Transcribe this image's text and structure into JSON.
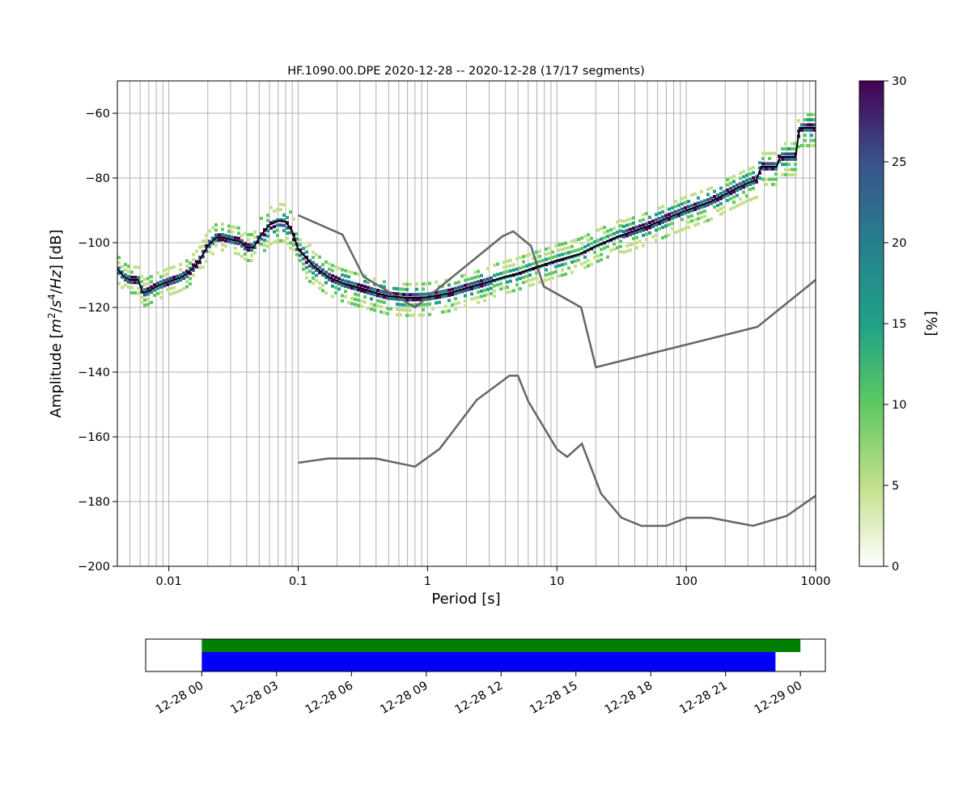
{
  "chart_data": [
    {
      "type": "heatmap",
      "title": "HF.1090.00.DPE   2020-12-28 -- 2020-12-28  (17/17 segments)",
      "xlabel": "Period [s]",
      "ylabel_main": "Amplitude [",
      "ylabel_math": [
        "m",
        "2",
        "/",
        "s",
        "4",
        "/",
        "Hz"
      ],
      "ylabel_tail": "] [dB]",
      "x_scale": "log",
      "xlim": [
        0.004,
        1000
      ],
      "ylim": [
        -200,
        -50
      ],
      "x_ticks": [
        {
          "value": 0.01,
          "label": "0.01"
        },
        {
          "value": 0.1,
          "label": "0.1"
        },
        {
          "value": 1,
          "label": "1"
        },
        {
          "value": 10,
          "label": "10"
        },
        {
          "value": 100,
          "label": "100"
        },
        {
          "value": 1000,
          "label": "1000"
        }
      ],
      "y_ticks": [
        {
          "value": -60,
          "label": "−60"
        },
        {
          "value": -80,
          "label": "−80"
        },
        {
          "value": -100,
          "label": "−100"
        },
        {
          "value": -120,
          "label": "−120"
        },
        {
          "value": -140,
          "label": "−140"
        },
        {
          "value": -160,
          "label": "−160"
        },
        {
          "value": -180,
          "label": "−180"
        },
        {
          "value": -200,
          "label": "−200"
        }
      ],
      "grid": true,
      "colorbar": {
        "label": "[%]",
        "range": [
          0,
          30
        ],
        "ticks": [
          {
            "value": 0,
            "label": "0"
          },
          {
            "value": 5,
            "label": "5"
          },
          {
            "value": 10,
            "label": "10"
          },
          {
            "value": 15,
            "label": "15"
          },
          {
            "value": 20,
            "label": "20"
          },
          {
            "value": 25,
            "label": "25"
          },
          {
            "value": 30,
            "label": "30"
          }
        ],
        "colors": [
          "#ffffff",
          "#c2df8a",
          "#5ec962",
          "#1fa187",
          "#277f8e",
          "#3a538b",
          "#440154"
        ]
      },
      "mean_curve": {
        "color": "#000000",
        "points": [
          [
            0.004,
            -108
          ],
          [
            0.0045,
            -110.5
          ],
          [
            0.005,
            -111.5
          ],
          [
            0.0058,
            -111.5
          ],
          [
            0.0063,
            -115.5
          ],
          [
            0.007,
            -115
          ],
          [
            0.008,
            -113.5
          ],
          [
            0.01,
            -112
          ],
          [
            0.012,
            -111
          ],
          [
            0.014,
            -109.5
          ],
          [
            0.017,
            -106
          ],
          [
            0.02,
            -101
          ],
          [
            0.023,
            -98.5
          ],
          [
            0.026,
            -98.3
          ],
          [
            0.03,
            -99
          ],
          [
            0.035,
            -99.5
          ],
          [
            0.04,
            -101.5
          ],
          [
            0.045,
            -101.5
          ],
          [
            0.05,
            -98.5
          ],
          [
            0.06,
            -94.5
          ],
          [
            0.07,
            -93.3
          ],
          [
            0.08,
            -93.5
          ],
          [
            0.09,
            -96.5
          ],
          [
            0.1,
            -102
          ],
          [
            0.13,
            -107
          ],
          [
            0.17,
            -110.5
          ],
          [
            0.22,
            -112.5
          ],
          [
            0.3,
            -114
          ],
          [
            0.4,
            -115.5
          ],
          [
            0.5,
            -116.5
          ],
          [
            0.7,
            -117
          ],
          [
            1,
            -116.8
          ],
          [
            1.5,
            -115.5
          ],
          [
            2,
            -114
          ],
          [
            3,
            -112
          ],
          [
            4,
            -110.5
          ],
          [
            5,
            -109.5
          ],
          [
            7,
            -107.5
          ],
          [
            10,
            -105.5
          ],
          [
            15,
            -103.5
          ],
          [
            20,
            -101
          ],
          [
            30,
            -98
          ],
          [
            50,
            -95
          ],
          [
            70,
            -92.5
          ],
          [
            100,
            -90
          ],
          [
            150,
            -87.5
          ],
          [
            200,
            -85
          ],
          [
            250,
            -83
          ],
          [
            300,
            -81.5
          ],
          [
            350,
            -80.5
          ],
          [
            380,
            -76.5
          ],
          [
            500,
            -76.5
          ],
          [
            530,
            -73.5
          ],
          [
            700,
            -73.5
          ],
          [
            750,
            -64.5
          ],
          [
            1000,
            -64.5
          ]
        ]
      },
      "model_curves": [
        {
          "color": "#666666",
          "points": [
            [
              0.1,
              -91.5
            ],
            [
              0.22,
              -97.5
            ],
            [
              0.32,
              -110.5
            ],
            [
              0.8,
              -120
            ],
            [
              3.8,
              -98
            ],
            [
              4.6,
              -96.5
            ],
            [
              6.3,
              -101
            ],
            [
              7.9,
              -113.5
            ],
            [
              15.4,
              -120
            ],
            [
              20,
              -138.5
            ],
            [
              354.8,
              -126
            ],
            [
              1000,
              -111.5
            ]
          ]
        },
        {
          "color": "#666666",
          "points": [
            [
              0.1,
              -168
            ],
            [
              0.17,
              -166.7
            ],
            [
              0.4,
              -166.7
            ],
            [
              0.8,
              -169.2
            ],
            [
              1.24,
              -163.7
            ],
            [
              2.4,
              -148.6
            ],
            [
              4.3,
              -141.1
            ],
            [
              5,
              -141.1
            ],
            [
              6,
              -149
            ],
            [
              10,
              -163.8
            ],
            [
              12,
              -166.2
            ],
            [
              15.6,
              -162.1
            ],
            [
              21.9,
              -177.5
            ],
            [
              31.6,
              -185
            ],
            [
              45,
              -187.5
            ],
            [
              70,
              -187.5
            ],
            [
              101,
              -185
            ],
            [
              154,
              -185
            ],
            [
              328,
              -187.5
            ],
            [
              600,
              -184.4
            ],
            [
              1000,
              -178.2
            ]
          ]
        }
      ]
    },
    {
      "type": "timeline",
      "xlim": [
        "2020-12-27 21:45",
        "2020-12-29 01:00"
      ],
      "x_ticks": [
        {
          "value": "2020-12-28 00:00",
          "label": "12-28 00"
        },
        {
          "value": "2020-12-28 03:00",
          "label": "12-28 03"
        },
        {
          "value": "2020-12-28 06:00",
          "label": "12-28 06"
        },
        {
          "value": "2020-12-28 09:00",
          "label": "12-28 09"
        },
        {
          "value": "2020-12-28 12:00",
          "label": "12-28 12"
        },
        {
          "value": "2020-12-28 15:00",
          "label": "12-28 15"
        },
        {
          "value": "2020-12-28 18:00",
          "label": "12-28 18"
        },
        {
          "value": "2020-12-28 21:00",
          "label": "12-28 21"
        },
        {
          "value": "2020-12-29 00:00",
          "label": "12-29 00"
        }
      ],
      "bars": [
        {
          "start": "2020-12-28 00:00",
          "end": "2020-12-29 00:00",
          "color": "#008000"
        },
        {
          "start": "2020-12-28 00:00",
          "end": "2020-12-28 23:00",
          "color": "#0000ff"
        }
      ]
    }
  ]
}
